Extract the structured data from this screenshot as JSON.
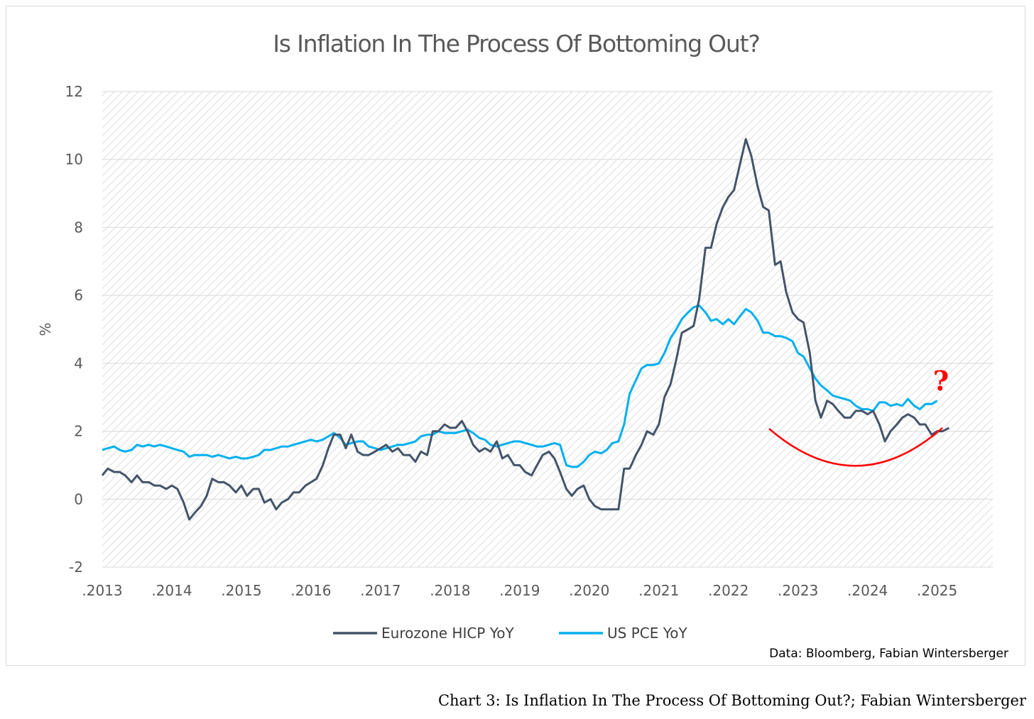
{
  "chart_data": {
    "type": "line",
    "title": "Is Inflation In The Process Of Bottoming Out?",
    "xlabel": "",
    "ylabel": "%",
    "ylim": [
      -2,
      12
    ],
    "yticks": [
      "12",
      "10",
      "8",
      "6",
      "4",
      "2",
      "0",
      "-2"
    ],
    "xlim": [
      2013,
      2025.8
    ],
    "xticks": [
      ".2013",
      ".2014",
      ".2015",
      ".2016",
      ".2017",
      ".2018",
      ".2019",
      ".2020",
      ".2021",
      ".2022",
      ".2023",
      ".2024",
      ".2025"
    ],
    "grid": true,
    "legend_position": "bottom-center",
    "annotations": {
      "question_mark": "?",
      "trough_arc": "red arc under recent data"
    },
    "source_note": "Data: Bloomberg, Fabian Wintersberger",
    "series": [
      {
        "name": "Eurozone HICP YoY",
        "color": "#44546a",
        "points": [
          [
            2013.0,
            0.7
          ],
          [
            2013.08,
            0.9
          ],
          [
            2013.17,
            0.8
          ],
          [
            2013.25,
            0.8
          ],
          [
            2013.33,
            0.7
          ],
          [
            2013.42,
            0.5
          ],
          [
            2013.5,
            0.7
          ],
          [
            2013.58,
            0.5
          ],
          [
            2013.67,
            0.5
          ],
          [
            2013.75,
            0.4
          ],
          [
            2013.83,
            0.4
          ],
          [
            2013.92,
            0.3
          ],
          [
            2014.0,
            0.4
          ],
          [
            2014.08,
            0.3
          ],
          [
            2014.17,
            -0.1
          ],
          [
            2014.25,
            -0.6
          ],
          [
            2014.33,
            -0.4
          ],
          [
            2014.42,
            -0.2
          ],
          [
            2014.5,
            0.1
          ],
          [
            2014.58,
            0.6
          ],
          [
            2014.67,
            0.5
          ],
          [
            2014.75,
            0.5
          ],
          [
            2014.83,
            0.4
          ],
          [
            2014.92,
            0.2
          ],
          [
            2015.0,
            0.4
          ],
          [
            2015.08,
            0.1
          ],
          [
            2015.17,
            0.3
          ],
          [
            2015.25,
            0.3
          ],
          [
            2015.33,
            -0.1
          ],
          [
            2015.42,
            0.0
          ],
          [
            2015.5,
            -0.3
          ],
          [
            2015.58,
            -0.1
          ],
          [
            2015.67,
            0.0
          ],
          [
            2015.75,
            0.2
          ],
          [
            2015.83,
            0.2
          ],
          [
            2015.92,
            0.4
          ],
          [
            2016.0,
            0.5
          ],
          [
            2016.08,
            0.6
          ],
          [
            2016.17,
            1.0
          ],
          [
            2016.25,
            1.5
          ],
          [
            2016.33,
            1.9
          ],
          [
            2016.42,
            1.9
          ],
          [
            2016.5,
            1.5
          ],
          [
            2016.58,
            1.9
          ],
          [
            2016.67,
            1.4
          ],
          [
            2016.75,
            1.3
          ],
          [
            2016.83,
            1.3
          ],
          [
            2016.92,
            1.4
          ],
          [
            2017.0,
            1.5
          ],
          [
            2017.08,
            1.6
          ],
          [
            2017.17,
            1.4
          ],
          [
            2017.25,
            1.5
          ],
          [
            2017.33,
            1.3
          ],
          [
            2017.42,
            1.3
          ],
          [
            2017.5,
            1.1
          ],
          [
            2017.58,
            1.4
          ],
          [
            2017.67,
            1.3
          ],
          [
            2017.75,
            2.0
          ],
          [
            2017.83,
            2.0
          ],
          [
            2017.92,
            2.2
          ],
          [
            2018.0,
            2.1
          ],
          [
            2018.08,
            2.1
          ],
          [
            2018.17,
            2.3
          ],
          [
            2018.25,
            2.0
          ],
          [
            2018.33,
            1.6
          ],
          [
            2018.42,
            1.4
          ],
          [
            2018.5,
            1.5
          ],
          [
            2018.58,
            1.4
          ],
          [
            2018.67,
            1.7
          ],
          [
            2018.75,
            1.2
          ],
          [
            2018.83,
            1.3
          ],
          [
            2018.92,
            1.0
          ],
          [
            2019.0,
            1.0
          ],
          [
            2019.08,
            0.8
          ],
          [
            2019.17,
            0.7
          ],
          [
            2019.25,
            1.0
          ],
          [
            2019.33,
            1.3
          ],
          [
            2019.42,
            1.4
          ],
          [
            2019.5,
            1.2
          ],
          [
            2019.58,
            0.8
          ],
          [
            2019.67,
            0.3
          ],
          [
            2019.75,
            0.1
          ],
          [
            2019.83,
            0.3
          ],
          [
            2019.92,
            0.4
          ],
          [
            2020.0,
            0.0
          ],
          [
            2020.08,
            -0.2
          ],
          [
            2020.17,
            -0.3
          ],
          [
            2020.25,
            -0.3
          ],
          [
            2020.33,
            -0.3
          ],
          [
            2020.42,
            -0.3
          ],
          [
            2020.5,
            0.9
          ],
          [
            2020.58,
            0.9
          ],
          [
            2020.67,
            1.3
          ],
          [
            2020.75,
            1.6
          ],
          [
            2020.83,
            2.0
          ],
          [
            2020.92,
            1.9
          ],
          [
            2021.0,
            2.2
          ],
          [
            2021.08,
            3.0
          ],
          [
            2021.17,
            3.4
          ],
          [
            2021.25,
            4.1
          ],
          [
            2021.33,
            4.9
          ],
          [
            2021.42,
            5.0
          ],
          [
            2021.5,
            5.1
          ],
          [
            2021.58,
            5.9
          ],
          [
            2021.67,
            7.4
          ],
          [
            2021.75,
            7.4
          ],
          [
            2021.83,
            8.1
          ],
          [
            2021.92,
            8.6
          ],
          [
            2022.0,
            8.9
          ],
          [
            2022.08,
            9.1
          ],
          [
            2022.17,
            9.9
          ],
          [
            2022.25,
            10.6
          ],
          [
            2022.33,
            10.1
          ],
          [
            2022.42,
            9.2
          ],
          [
            2022.5,
            8.6
          ],
          [
            2022.58,
            8.5
          ],
          [
            2022.67,
            6.9
          ],
          [
            2022.75,
            7.0
          ],
          [
            2022.83,
            6.1
          ],
          [
            2022.92,
            5.5
          ],
          [
            2023.0,
            5.3
          ],
          [
            2023.08,
            5.2
          ],
          [
            2023.17,
            4.3
          ],
          [
            2023.25,
            2.9
          ],
          [
            2023.33,
            2.4
          ],
          [
            2023.42,
            2.9
          ],
          [
            2023.5,
            2.8
          ],
          [
            2023.58,
            2.6
          ],
          [
            2023.67,
            2.4
          ],
          [
            2023.75,
            2.4
          ],
          [
            2023.83,
            2.6
          ],
          [
            2023.92,
            2.6
          ],
          [
            2024.0,
            2.5
          ],
          [
            2024.08,
            2.6
          ],
          [
            2024.17,
            2.2
          ],
          [
            2024.25,
            1.7
          ],
          [
            2024.33,
            2.0
          ],
          [
            2024.42,
            2.2
          ],
          [
            2024.5,
            2.4
          ],
          [
            2024.58,
            2.5
          ],
          [
            2024.67,
            2.4
          ],
          [
            2024.75,
            2.2
          ],
          [
            2024.83,
            2.2
          ],
          [
            2024.92,
            1.9
          ],
          [
            2025.0,
            2.0
          ],
          [
            2025.08,
            2.0
          ],
          [
            2025.17,
            2.1
          ]
        ]
      },
      {
        "name": "US PCE YoY",
        "color": "#00b0f0",
        "points": [
          [
            2013.0,
            1.45
          ],
          [
            2013.08,
            1.5
          ],
          [
            2013.17,
            1.55
          ],
          [
            2013.25,
            1.45
          ],
          [
            2013.33,
            1.4
          ],
          [
            2013.42,
            1.45
          ],
          [
            2013.5,
            1.6
          ],
          [
            2013.58,
            1.55
          ],
          [
            2013.67,
            1.6
          ],
          [
            2013.75,
            1.55
          ],
          [
            2013.83,
            1.6
          ],
          [
            2013.92,
            1.55
          ],
          [
            2014.0,
            1.5
          ],
          [
            2014.08,
            1.45
          ],
          [
            2014.17,
            1.4
          ],
          [
            2014.25,
            1.25
          ],
          [
            2014.33,
            1.3
          ],
          [
            2014.42,
            1.3
          ],
          [
            2014.5,
            1.3
          ],
          [
            2014.58,
            1.25
          ],
          [
            2014.67,
            1.3
          ],
          [
            2014.75,
            1.25
          ],
          [
            2014.83,
            1.2
          ],
          [
            2014.92,
            1.25
          ],
          [
            2015.0,
            1.2
          ],
          [
            2015.08,
            1.2
          ],
          [
            2015.17,
            1.25
          ],
          [
            2015.25,
            1.3
          ],
          [
            2015.33,
            1.45
          ],
          [
            2015.42,
            1.45
          ],
          [
            2015.5,
            1.5
          ],
          [
            2015.58,
            1.55
          ],
          [
            2015.67,
            1.55
          ],
          [
            2015.75,
            1.6
          ],
          [
            2015.83,
            1.65
          ],
          [
            2015.92,
            1.7
          ],
          [
            2016.0,
            1.75
          ],
          [
            2016.08,
            1.7
          ],
          [
            2016.17,
            1.75
          ],
          [
            2016.25,
            1.85
          ],
          [
            2016.33,
            1.95
          ],
          [
            2016.42,
            1.8
          ],
          [
            2016.5,
            1.6
          ],
          [
            2016.58,
            1.65
          ],
          [
            2016.67,
            1.7
          ],
          [
            2016.75,
            1.7
          ],
          [
            2016.83,
            1.55
          ],
          [
            2016.92,
            1.5
          ],
          [
            2017.0,
            1.45
          ],
          [
            2017.08,
            1.5
          ],
          [
            2017.17,
            1.55
          ],
          [
            2017.25,
            1.6
          ],
          [
            2017.33,
            1.6
          ],
          [
            2017.42,
            1.65
          ],
          [
            2017.5,
            1.7
          ],
          [
            2017.58,
            1.85
          ],
          [
            2017.67,
            1.9
          ],
          [
            2017.75,
            1.9
          ],
          [
            2017.83,
            2.0
          ],
          [
            2017.92,
            1.95
          ],
          [
            2018.0,
            1.95
          ],
          [
            2018.08,
            1.95
          ],
          [
            2018.17,
            2.0
          ],
          [
            2018.25,
            2.05
          ],
          [
            2018.33,
            1.95
          ],
          [
            2018.42,
            1.8
          ],
          [
            2018.5,
            1.75
          ],
          [
            2018.58,
            1.6
          ],
          [
            2018.67,
            1.55
          ],
          [
            2018.75,
            1.6
          ],
          [
            2018.83,
            1.65
          ],
          [
            2018.92,
            1.7
          ],
          [
            2019.0,
            1.7
          ],
          [
            2019.08,
            1.65
          ],
          [
            2019.17,
            1.6
          ],
          [
            2019.25,
            1.55
          ],
          [
            2019.33,
            1.55
          ],
          [
            2019.42,
            1.6
          ],
          [
            2019.5,
            1.65
          ],
          [
            2019.58,
            1.6
          ],
          [
            2019.67,
            1.0
          ],
          [
            2019.75,
            0.95
          ],
          [
            2019.83,
            0.95
          ],
          [
            2019.92,
            1.1
          ],
          [
            2020.0,
            1.3
          ],
          [
            2020.08,
            1.4
          ],
          [
            2020.17,
            1.35
          ],
          [
            2020.25,
            1.45
          ],
          [
            2020.33,
            1.65
          ],
          [
            2020.42,
            1.7
          ],
          [
            2020.5,
            2.2
          ],
          [
            2020.58,
            3.1
          ],
          [
            2020.67,
            3.5
          ],
          [
            2020.75,
            3.85
          ],
          [
            2020.83,
            3.95
          ],
          [
            2020.92,
            3.95
          ],
          [
            2021.0,
            4.0
          ],
          [
            2021.08,
            4.3
          ],
          [
            2021.17,
            4.75
          ],
          [
            2021.25,
            5.0
          ],
          [
            2021.33,
            5.3
          ],
          [
            2021.42,
            5.5
          ],
          [
            2021.5,
            5.65
          ],
          [
            2021.58,
            5.7
          ],
          [
            2021.67,
            5.5
          ],
          [
            2021.75,
            5.25
          ],
          [
            2021.83,
            5.3
          ],
          [
            2021.92,
            5.15
          ],
          [
            2022.0,
            5.3
          ],
          [
            2022.08,
            5.15
          ],
          [
            2022.17,
            5.4
          ],
          [
            2022.25,
            5.6
          ],
          [
            2022.33,
            5.5
          ],
          [
            2022.42,
            5.25
          ],
          [
            2022.5,
            4.9
          ],
          [
            2022.58,
            4.9
          ],
          [
            2022.67,
            4.8
          ],
          [
            2022.75,
            4.8
          ],
          [
            2022.83,
            4.75
          ],
          [
            2022.92,
            4.65
          ],
          [
            2023.0,
            4.3
          ],
          [
            2023.08,
            4.2
          ],
          [
            2023.17,
            3.85
          ],
          [
            2023.25,
            3.55
          ],
          [
            2023.33,
            3.35
          ],
          [
            2023.42,
            3.2
          ],
          [
            2023.5,
            3.05
          ],
          [
            2023.58,
            3.0
          ],
          [
            2023.67,
            2.95
          ],
          [
            2023.75,
            2.9
          ],
          [
            2023.83,
            2.75
          ],
          [
            2023.92,
            2.65
          ],
          [
            2024.0,
            2.65
          ],
          [
            2024.08,
            2.6
          ],
          [
            2024.17,
            2.85
          ],
          [
            2024.25,
            2.85
          ],
          [
            2024.33,
            2.75
          ],
          [
            2024.42,
            2.8
          ],
          [
            2024.5,
            2.75
          ],
          [
            2024.58,
            2.95
          ],
          [
            2024.67,
            2.75
          ],
          [
            2024.75,
            2.65
          ],
          [
            2024.83,
            2.8
          ],
          [
            2024.92,
            2.8
          ],
          [
            2025.0,
            2.9
          ]
        ]
      }
    ]
  },
  "caption": "Chart 3: Is Inflation In The Process Of Bottoming Out?; Fabian Wintersberger"
}
